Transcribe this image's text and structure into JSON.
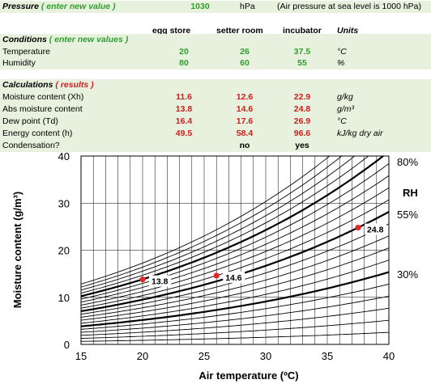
{
  "pressure": {
    "label_main": "Pressure",
    "label_hint": "( enter new value )",
    "value": "1030",
    "unit": "hPa",
    "note": "(Air pressure at sea level is 1000 hPa)"
  },
  "conditions": {
    "title_main": "Conditions",
    "title_hint": "( enter new values )",
    "columns": [
      "egg store",
      "setter room",
      "incubator"
    ],
    "units_header": "Units",
    "rows": [
      {
        "label": "Temperature",
        "values": [
          "20",
          "26",
          "37.5"
        ],
        "unit": "°C"
      },
      {
        "label": "Humidity",
        "values": [
          "80",
          "60",
          "55"
        ],
        "unit": "%"
      }
    ]
  },
  "calculations": {
    "title_main": "Calculations",
    "title_hint": "( results )",
    "rows": [
      {
        "label": "Moisture content (Xh)",
        "values": [
          "11.6",
          "12.6",
          "22.9"
        ],
        "unit": "g/kg"
      },
      {
        "label": "Abs moisture content",
        "values": [
          "13.8",
          "14.6",
          "24.8"
        ],
        "unit": "g/m³"
      },
      {
        "label": "Dew point (Td)",
        "values": [
          "16.4",
          "17.6",
          "26.9"
        ],
        "unit": "°C"
      },
      {
        "label": "Energy content (h)",
        "values": [
          "49.5",
          "58.4",
          "96.6"
        ],
        "unit": "kJ/kg dry air"
      }
    ],
    "condensation": {
      "label": "Condensation?",
      "values": [
        "",
        "no",
        "yes"
      ]
    }
  },
  "chart_data": {
    "type": "line",
    "xlabel": "Air temperature (ºC)",
    "ylabel": "Moisture content (g/m³)",
    "xlim": [
      15,
      40
    ],
    "ylim": [
      0,
      40
    ],
    "xticks": [
      15,
      20,
      25,
      30,
      35,
      40
    ],
    "yticks": [
      0,
      10,
      20,
      30,
      40
    ],
    "grid": true,
    "rh_label": "RH",
    "rh_curve_labels": [
      {
        "text": "80%",
        "rh": 80
      },
      {
        "text": "55%",
        "rh": 55
      },
      {
        "text": "30%",
        "rh": 30
      }
    ],
    "rh_curves": [
      5,
      10,
      15,
      20,
      25,
      30,
      35,
      40,
      45,
      50,
      55,
      60,
      65,
      70,
      75,
      80,
      85,
      90,
      95,
      100
    ],
    "bold_curves": [
      30,
      55,
      80
    ],
    "points": [
      {
        "x": 20,
        "y": 13.8,
        "label": "13.8"
      },
      {
        "x": 26,
        "y": 14.6,
        "label": "14.6"
      },
      {
        "x": 37.5,
        "y": 24.8,
        "label": "24.8"
      }
    ],
    "point_color": "#e8262a"
  }
}
